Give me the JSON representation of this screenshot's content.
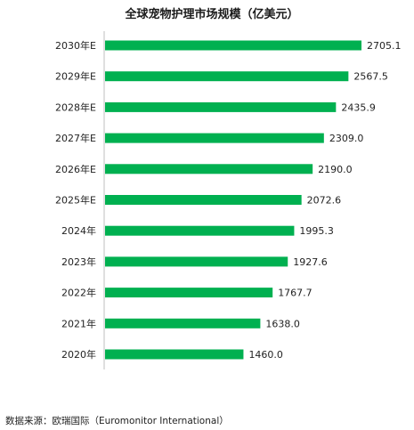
{
  "chart_data": {
    "type": "bar",
    "orientation": "horizontal",
    "title": "全球宠物护理市场规模（亿美元）",
    "categories": [
      "2030年E",
      "2029年E",
      "2028年E",
      "2027年E",
      "2026年E",
      "2025年E",
      "2024年",
      "2023年",
      "2022年",
      "2021年",
      "2020年"
    ],
    "values": [
      2705.1,
      2567.5,
      2435.9,
      2309.0,
      2190.0,
      2072.6,
      1995.3,
      1927.6,
      1767.7,
      1638.0,
      1460.0
    ],
    "value_labels": [
      "2705.1",
      "2567.5",
      "2435.9",
      "2309.0",
      "2190.0",
      "2072.6",
      "1995.3",
      "1927.6",
      "1767.7",
      "1638.0",
      "1460.0"
    ],
    "bar_color": "#00b050",
    "xlim": [
      0,
      2705.1
    ],
    "grid": false,
    "legend": "none"
  },
  "source": "数据来源：欧瑞国际（Euromonitor International）"
}
